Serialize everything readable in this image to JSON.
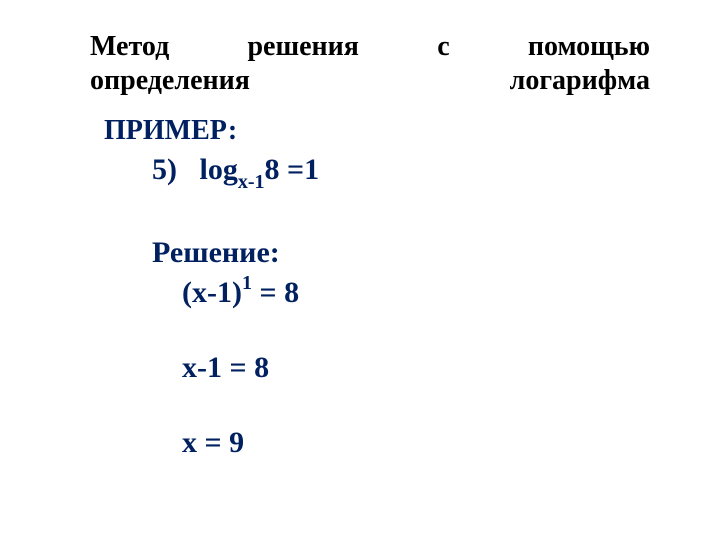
{
  "colors": {
    "background": "#ffffff",
    "title_text": "#000000",
    "body_text": "#002060"
  },
  "typography": {
    "font_family": "Times New Roman",
    "title_fontsize_pt": 21,
    "body_fontsize_pt": 22,
    "sub_sup_fontsize_pt": 15,
    "weight": "bold"
  },
  "title": {
    "line1": "Метод решения с помощью",
    "line2": "определения логарифма"
  },
  "example_label": "ПРИМЕР:",
  "problem": {
    "number": "5)",
    "func": "log",
    "base": "х-1",
    "arg_and_rhs": "8 =1"
  },
  "solution_label": "Решение:",
  "steps": {
    "s1_lhs_open": "(х-1)",
    "s1_exp": "1",
    "s1_rhs": " = 8",
    "s2": "х-1 = 8",
    "s3": "х = 9"
  }
}
